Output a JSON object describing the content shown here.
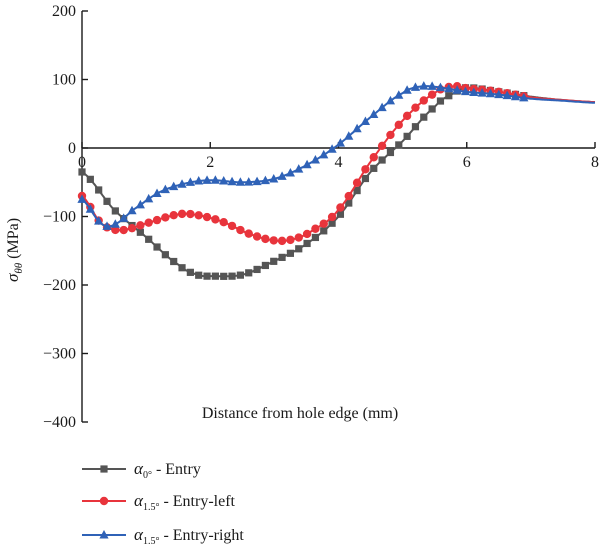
{
  "chart_data": {
    "type": "line",
    "xlabel": "Distance from hole edge (mm)",
    "ylabel": {
      "symbol": "σ",
      "subscript": "θθ",
      "unit": "(MPa)"
    },
    "xlim": [
      0,
      8
    ],
    "ylim": [
      -400,
      200
    ],
    "x_ticks": [
      0,
      2,
      4,
      6,
      8
    ],
    "y_ticks": [
      200,
      100,
      0,
      -100,
      -200,
      -300,
      -400
    ],
    "grid": false,
    "legend_position": "bottom-left",
    "series": [
      {
        "name": "α0° - Entry",
        "legend": {
          "symbol": "α",
          "subscript": "0°",
          "text": " - Entry"
        },
        "color": "#555555",
        "marker": "square",
        "points": [
          [
            0,
            -35
          ],
          [
            0.5,
            -90
          ],
          [
            1.0,
            -130
          ],
          [
            1.5,
            -170
          ],
          [
            1.8,
            -185
          ],
          [
            2.0,
            -187
          ],
          [
            2.5,
            -185
          ],
          [
            3.0,
            -165
          ],
          [
            3.5,
            -140
          ],
          [
            4.0,
            -100
          ],
          [
            4.5,
            -35
          ],
          [
            5.0,
            10
          ],
          [
            5.5,
            60
          ],
          [
            5.8,
            80
          ],
          [
            6.0,
            88
          ],
          [
            6.5,
            82
          ],
          [
            7.0,
            75
          ],
          [
            7.5,
            70
          ],
          [
            8.0,
            67
          ]
        ]
      },
      {
        "name": "α1.5° - Entry-left",
        "legend": {
          "symbol": "α",
          "subscript": "1.5°",
          "text": " - Entry-left"
        },
        "color": "#e8343c",
        "marker": "circle",
        "points": [
          [
            0,
            -70
          ],
          [
            0.3,
            -110
          ],
          [
            0.6,
            -120
          ],
          [
            1.0,
            -110
          ],
          [
            1.5,
            -97
          ],
          [
            1.8,
            -98
          ],
          [
            2.2,
            -108
          ],
          [
            2.6,
            -125
          ],
          [
            3.0,
            -135
          ],
          [
            3.3,
            -133
          ],
          [
            3.6,
            -120
          ],
          [
            4.0,
            -90
          ],
          [
            4.5,
            -20
          ],
          [
            5.0,
            40
          ],
          [
            5.5,
            80
          ],
          [
            5.8,
            90
          ],
          [
            6.0,
            87
          ],
          [
            6.5,
            82
          ],
          [
            7.0,
            74
          ],
          [
            7.5,
            70
          ],
          [
            8.0,
            67
          ]
        ]
      },
      {
        "name": "α1.5° - Entry-right",
        "legend": {
          "symbol": "α",
          "subscript": "1.5°",
          "text": " - Entry-right"
        },
        "color": "#2f62b7",
        "marker": "triangle",
        "points": [
          [
            0,
            -75
          ],
          [
            0.3,
            -110
          ],
          [
            0.5,
            -112
          ],
          [
            0.8,
            -90
          ],
          [
            1.2,
            -65
          ],
          [
            1.6,
            -52
          ],
          [
            2.0,
            -47
          ],
          [
            2.5,
            -50
          ],
          [
            3.0,
            -45
          ],
          [
            3.5,
            -25
          ],
          [
            4.0,
            5
          ],
          [
            4.5,
            45
          ],
          [
            5.0,
            80
          ],
          [
            5.3,
            90
          ],
          [
            5.6,
            88
          ],
          [
            6.0,
            82
          ],
          [
            6.5,
            78
          ],
          [
            7.0,
            72
          ],
          [
            7.5,
            69
          ],
          [
            8.0,
            66
          ]
        ]
      }
    ]
  }
}
